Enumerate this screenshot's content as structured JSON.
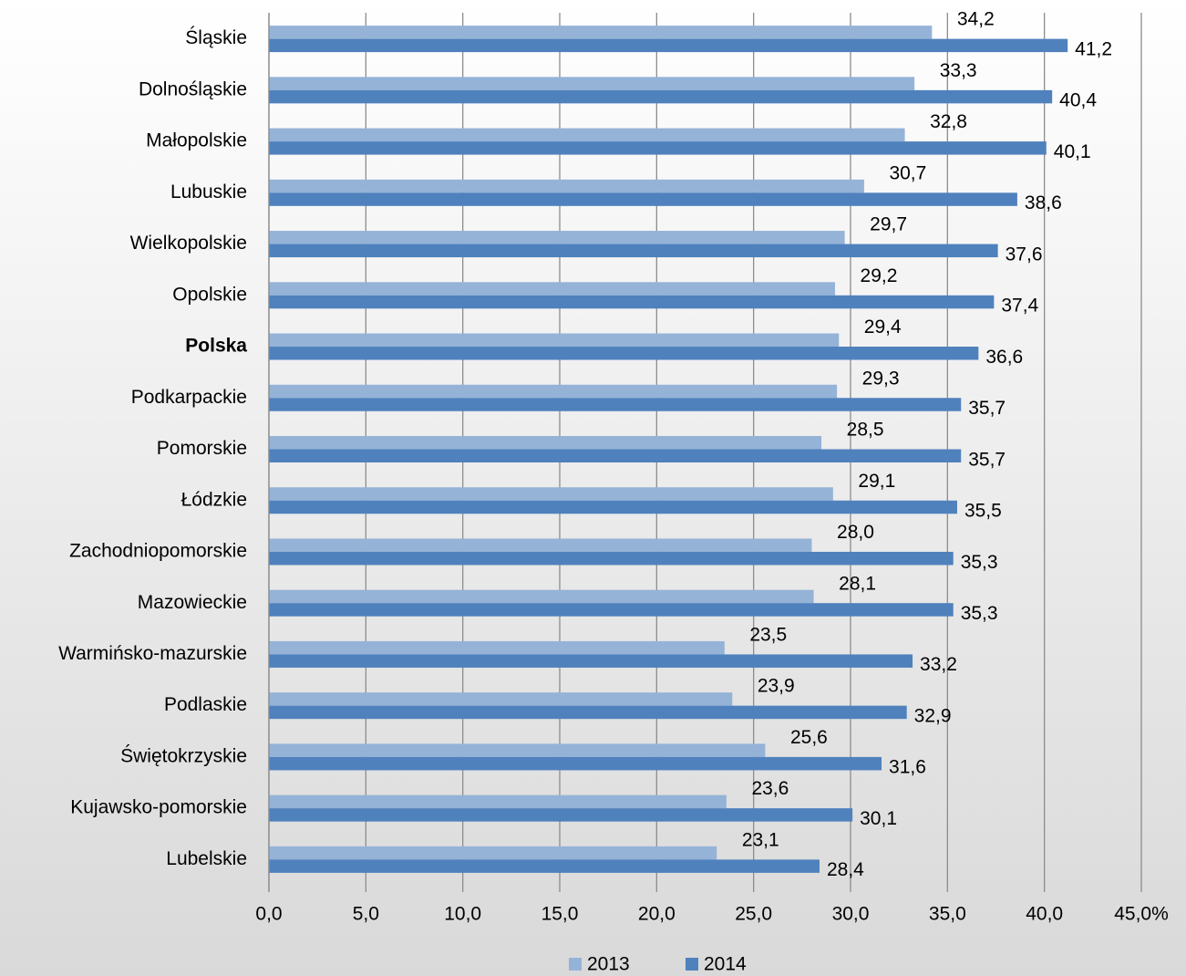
{
  "chart_data": {
    "type": "bar",
    "orientation": "horizontal",
    "categories": [
      "Śląskie",
      "Dolnośląskie",
      "Małopolskie",
      "Lubuskie",
      "Wielkopolskie",
      "Opolskie",
      "Polska",
      "Podkarpackie",
      "Pomorskie",
      "Łódzkie",
      "Zachodniopomorskie",
      "Mazowieckie",
      "Warmińsko-mazurskie",
      "Podlaskie",
      "Świętokrzyskie",
      "Kujawsko-pomorskie",
      "Lubelskie"
    ],
    "series": [
      {
        "name": "2013",
        "color": "#95b3d7",
        "values": [
          34.2,
          33.3,
          32.8,
          30.7,
          29.7,
          29.2,
          29.4,
          29.3,
          28.5,
          29.1,
          28.0,
          28.1,
          23.5,
          23.9,
          25.6,
          23.6,
          23.1
        ],
        "value_labels": [
          "34,2",
          "33,3",
          "32,8",
          "30,7",
          "29,7",
          "29,2",
          "29,4",
          "29,3",
          "28,5",
          "29,1",
          "28,0",
          "28,1",
          "23,5",
          "23,9",
          "25,6",
          "23,6",
          "23,1"
        ]
      },
      {
        "name": "2014",
        "color": "#4f81bd",
        "values": [
          41.2,
          40.4,
          40.1,
          38.6,
          37.6,
          37.4,
          36.6,
          35.7,
          35.7,
          35.5,
          35.3,
          35.3,
          33.2,
          32.9,
          31.6,
          30.1,
          28.4
        ],
        "value_labels": [
          "41,2",
          "40,4",
          "40,1",
          "38,6",
          "37,6",
          "37,4",
          "36,6",
          "35,7",
          "35,7",
          "35,5",
          "35,3",
          "35,3",
          "33,2",
          "32,9",
          "31,6",
          "30,1",
          "28,4"
        ]
      }
    ],
    "xlim": [
      0,
      45
    ],
    "xticks": [
      {
        "value": 0,
        "label": "0,0"
      },
      {
        "value": 5,
        "label": "5,0"
      },
      {
        "value": 10,
        "label": "10,0"
      },
      {
        "value": 15,
        "label": "15,0"
      },
      {
        "value": 20,
        "label": "20,0"
      },
      {
        "value": 25,
        "label": "25,0"
      },
      {
        "value": 30,
        "label": "30,0"
      },
      {
        "value": 35,
        "label": "35,0"
      },
      {
        "value": 40,
        "label": "40,0"
      },
      {
        "value": 45,
        "label": "45,0%"
      }
    ],
    "grid": true,
    "legend": "bottom"
  }
}
